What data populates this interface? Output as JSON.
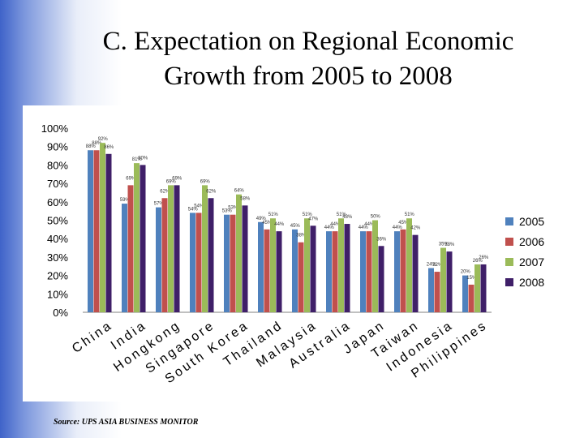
{
  "title_line1": "C. Expectation on Regional Economic",
  "title_line2": "Growth from 2005 to 2008",
  "source": "Source: UPS ASIA BUSINESS MONITOR",
  "chart_data": {
    "type": "bar",
    "title": "C. Expectation on Regional Economic Growth from 2005 to 2008",
    "xlabel": "",
    "ylabel": "",
    "ylim": [
      0,
      100
    ],
    "yticks": [
      "0%",
      "10%",
      "20%",
      "30%",
      "40%",
      "50%",
      "60%",
      "70%",
      "80%",
      "90%",
      "100%"
    ],
    "categories": [
      "China",
      "India",
      "Hongkong",
      "Singapore",
      "South Korea",
      "Thailand",
      "Malaysia",
      "Australia",
      "Japan",
      "Taiwan",
      "Indonesia",
      "Philippines"
    ],
    "series": [
      {
        "name": "2005",
        "color": "#4f81bd",
        "values": [
          88,
          59,
          57,
          54,
          53,
          49,
          45,
          44,
          44,
          44,
          24,
          20
        ]
      },
      {
        "name": "2006",
        "color": "#c0504d",
        "values": [
          88,
          69,
          62,
          54,
          53,
          45,
          38,
          44,
          44,
          45,
          22,
          15
        ]
      },
      {
        "name": "2007",
        "color": "#9bbb59",
        "values": [
          92,
          81,
          69,
          69,
          64,
          51,
          51,
          51,
          50,
          51,
          35,
          26
        ]
      },
      {
        "name": "2008",
        "color": "#3f1f68",
        "values": [
          86,
          80,
          69,
          62,
          58,
          44,
          47,
          48,
          36,
          42,
          33,
          26
        ]
      }
    ],
    "legend_position": "right"
  }
}
